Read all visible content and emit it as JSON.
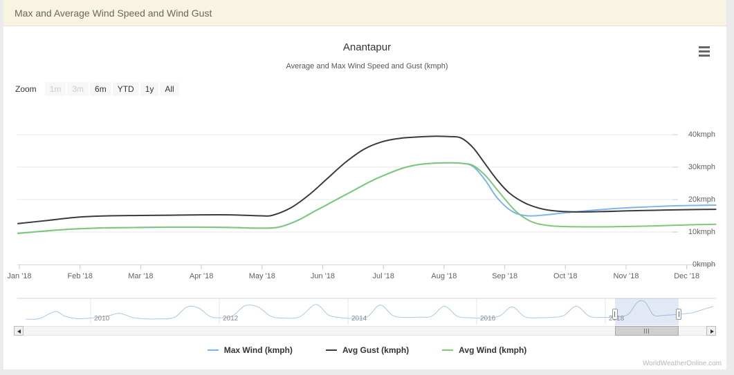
{
  "header": {
    "title": "Max and Average Wind Speed and Wind Gust"
  },
  "chart": {
    "title": "Anantapur",
    "subtitle": "Average and Max Wind Speed and Gust (kmph)",
    "zoom_label": "Zoom",
    "zoom_buttons": [
      {
        "label": "1m",
        "enabled": false
      },
      {
        "label": "3m",
        "enabled": false
      },
      {
        "label": "6m",
        "enabled": true
      },
      {
        "label": "YTD",
        "enabled": true
      },
      {
        "label": "1y",
        "enabled": true
      },
      {
        "label": "All",
        "enabled": true
      }
    ],
    "watermark": "WorldWeatherOnline.com",
    "header_bg": "#f9f4e1"
  },
  "chart_data": {
    "type": "line",
    "title": "Anantapur",
    "subtitle": "Average and Max Wind Speed and Gust (kmph)",
    "xlabel": "",
    "ylabel": "kmph",
    "ylim": [
      0,
      45
    ],
    "grid": true,
    "legend_position": "bottom",
    "y_ticks": [
      {
        "value": 0,
        "label": "0kmph"
      },
      {
        "value": 10,
        "label": "10kmph"
      },
      {
        "value": 20,
        "label": "20kmph"
      },
      {
        "value": 30,
        "label": "30kmph"
      },
      {
        "value": 40,
        "label": "40kmph"
      }
    ],
    "x_tick_labels": [
      "Jan '18",
      "Feb '18",
      "Mar '18",
      "Apr '18",
      "May '18",
      "Jun '18",
      "Jul '18",
      "Aug '18",
      "Sep '18",
      "Oct '18",
      "Nov '18",
      "Dec '18"
    ],
    "x_unit": "month index within 2018 (0 = Jan, fractional = part of month)",
    "series": [
      {
        "name": "Max Wind (kmph)",
        "color": "#7cb5ec",
        "points": [
          [
            0,
            9.6
          ],
          [
            0.5,
            10.4
          ],
          [
            1,
            11.0
          ],
          [
            1.5,
            11.3
          ],
          [
            2,
            11.4
          ],
          [
            2.5,
            11.5
          ],
          [
            3,
            11.5
          ],
          [
            3.5,
            11.4
          ],
          [
            4,
            11.2
          ],
          [
            4.3,
            11.5
          ],
          [
            4.6,
            13.5
          ],
          [
            4.9,
            16.5
          ],
          [
            5.2,
            19.5
          ],
          [
            5.5,
            22.5
          ],
          [
            5.8,
            25.5
          ],
          [
            6.1,
            28.0
          ],
          [
            6.4,
            30.0
          ],
          [
            6.7,
            31.0
          ],
          [
            7.0,
            31.3
          ],
          [
            7.3,
            31.2
          ],
          [
            7.5,
            30.2
          ],
          [
            7.7,
            26.0
          ],
          [
            7.9,
            20.5
          ],
          [
            8.15,
            16.3
          ],
          [
            8.4,
            15.0
          ],
          [
            8.7,
            15.3
          ],
          [
            9.0,
            15.9
          ],
          [
            9.4,
            16.6
          ],
          [
            9.8,
            17.2
          ],
          [
            10.2,
            17.6
          ],
          [
            10.7,
            18.0
          ],
          [
            11.1,
            18.2
          ],
          [
            11.5,
            18.3
          ]
        ]
      },
      {
        "name": "Avg Gust (kmph)",
        "color": "#3a3a3e",
        "points": [
          [
            0,
            12.6
          ],
          [
            0.5,
            13.6
          ],
          [
            1,
            14.6
          ],
          [
            1.5,
            15.0
          ],
          [
            2,
            15.1
          ],
          [
            2.5,
            15.2
          ],
          [
            3,
            15.3
          ],
          [
            3.5,
            15.3
          ],
          [
            4,
            15.0
          ],
          [
            4.2,
            15.2
          ],
          [
            4.5,
            17.5
          ],
          [
            4.8,
            21.5
          ],
          [
            5.1,
            26.5
          ],
          [
            5.4,
            31.5
          ],
          [
            5.7,
            35.5
          ],
          [
            6.0,
            37.8
          ],
          [
            6.3,
            38.9
          ],
          [
            6.6,
            39.3
          ],
          [
            6.9,
            39.5
          ],
          [
            7.1,
            39.4
          ],
          [
            7.3,
            39.0
          ],
          [
            7.5,
            36.0
          ],
          [
            7.7,
            31.0
          ],
          [
            7.9,
            26.0
          ],
          [
            8.1,
            22.0
          ],
          [
            8.35,
            19.0
          ],
          [
            8.6,
            17.3
          ],
          [
            8.85,
            16.5
          ],
          [
            9.2,
            16.2
          ],
          [
            9.6,
            16.3
          ],
          [
            10.0,
            16.5
          ],
          [
            10.5,
            16.7
          ],
          [
            11.0,
            16.9
          ],
          [
            11.5,
            17.0
          ]
        ]
      },
      {
        "name": "Avg Wind (kmph)",
        "color": "#7dc87a",
        "points": [
          [
            0,
            9.6
          ],
          [
            0.5,
            10.4
          ],
          [
            1,
            11.0
          ],
          [
            1.5,
            11.3
          ],
          [
            2,
            11.4
          ],
          [
            2.5,
            11.5
          ],
          [
            3,
            11.5
          ],
          [
            3.5,
            11.4
          ],
          [
            4,
            11.2
          ],
          [
            4.3,
            11.5
          ],
          [
            4.6,
            13.5
          ],
          [
            4.9,
            16.5
          ],
          [
            5.2,
            19.5
          ],
          [
            5.5,
            22.5
          ],
          [
            5.8,
            25.5
          ],
          [
            6.1,
            28.0
          ],
          [
            6.4,
            30.0
          ],
          [
            6.7,
            31.0
          ],
          [
            7.0,
            31.3
          ],
          [
            7.3,
            31.2
          ],
          [
            7.5,
            30.5
          ],
          [
            7.7,
            27.5
          ],
          [
            7.9,
            23.0
          ],
          [
            8.2,
            16.5
          ],
          [
            8.45,
            13.3
          ],
          [
            8.7,
            12.1
          ],
          [
            9.0,
            11.7
          ],
          [
            9.5,
            11.6
          ],
          [
            10.0,
            11.7
          ],
          [
            10.5,
            11.9
          ],
          [
            11.0,
            12.2
          ],
          [
            11.5,
            12.4
          ]
        ]
      }
    ],
    "navigator": {
      "year_labels": [
        "2010",
        "2012",
        "2014",
        "2016",
        "2018"
      ],
      "selected_range_years": [
        2018.15,
        2019.14
      ],
      "line_color": "#a9c8e6",
      "x_unit": "year (fractional)",
      "points": [
        [
          2009.0,
          8
        ],
        [
          2009.2,
          9
        ],
        [
          2009.45,
          21
        ],
        [
          2009.6,
          13
        ],
        [
          2009.8,
          9
        ],
        [
          2010.0,
          10
        ],
        [
          2010.25,
          13
        ],
        [
          2010.45,
          18
        ],
        [
          2010.65,
          11
        ],
        [
          2010.85,
          8.5
        ],
        [
          2011.05,
          8.5
        ],
        [
          2011.3,
          11
        ],
        [
          2011.5,
          29
        ],
        [
          2011.68,
          27
        ],
        [
          2011.85,
          13
        ],
        [
          2012.0,
          10.5
        ],
        [
          2012.2,
          13
        ],
        [
          2012.4,
          31
        ],
        [
          2012.6,
          29
        ],
        [
          2012.8,
          13
        ],
        [
          2013.0,
          10
        ],
        [
          2013.25,
          12
        ],
        [
          2013.5,
          33
        ],
        [
          2013.7,
          15
        ],
        [
          2013.9,
          10.5
        ],
        [
          2014.1,
          9.5
        ],
        [
          2014.3,
          12
        ],
        [
          2014.5,
          32
        ],
        [
          2014.7,
          14
        ],
        [
          2014.9,
          11
        ],
        [
          2015.1,
          11.5
        ],
        [
          2015.3,
          13
        ],
        [
          2015.5,
          30
        ],
        [
          2015.7,
          13
        ],
        [
          2015.9,
          10.5
        ],
        [
          2016.1,
          10
        ],
        [
          2016.35,
          13
        ],
        [
          2016.55,
          29
        ],
        [
          2016.75,
          12
        ],
        [
          2016.95,
          10.5
        ],
        [
          2017.15,
          11
        ],
        [
          2017.35,
          14
        ],
        [
          2017.55,
          30
        ],
        [
          2017.75,
          13
        ],
        [
          2017.95,
          11
        ],
        [
          2018.15,
          12
        ],
        [
          2018.35,
          16
        ],
        [
          2018.5,
          37
        ],
        [
          2018.62,
          37
        ],
        [
          2018.75,
          15
        ],
        [
          2018.9,
          14.5
        ],
        [
          2019.05,
          15.5
        ],
        [
          2019.2,
          17
        ],
        [
          2019.35,
          19
        ],
        [
          2019.5,
          24
        ],
        [
          2019.68,
          30
        ]
      ]
    }
  }
}
